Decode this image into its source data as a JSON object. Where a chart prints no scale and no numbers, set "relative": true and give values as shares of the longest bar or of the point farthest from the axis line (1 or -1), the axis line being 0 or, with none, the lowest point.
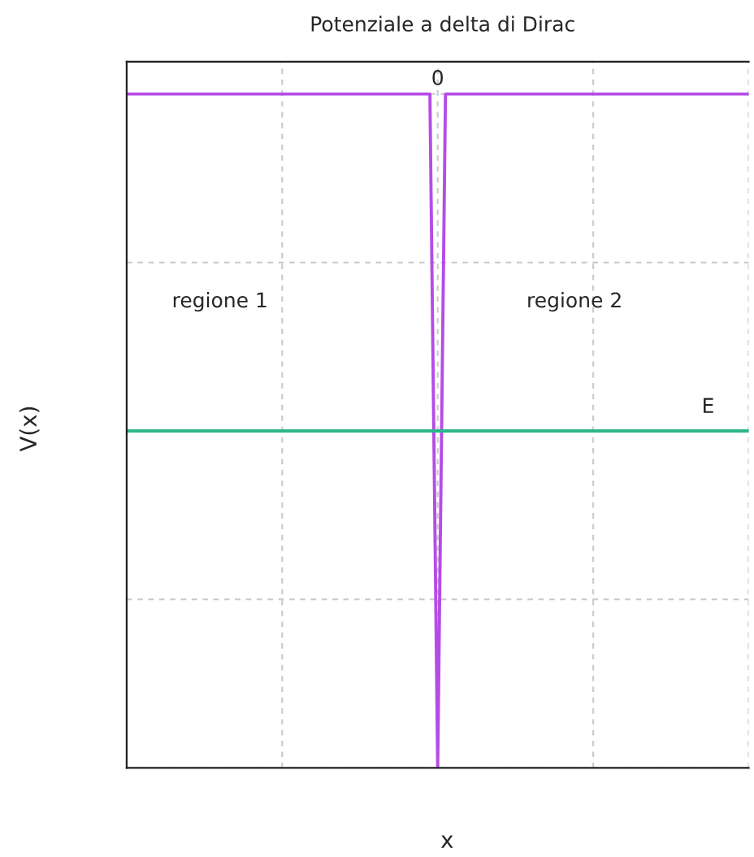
{
  "chart_data": {
    "type": "line",
    "title": "Potenziale a delta di Dirac",
    "xlabel": "x",
    "ylabel": "V(x)",
    "relative": true,
    "grid": true,
    "tick_labels": false,
    "legend": false,
    "marker": "none",
    "line_style": "solid",
    "categories": [
      null,
      null,
      null,
      null,
      null,
      null,
      null,
      null,
      null,
      null,
      null,
      null,
      null,
      null,
      null,
      null,
      null,
      null,
      null,
      null,
      null,
      null,
      null,
      null,
      null,
      null,
      null,
      null,
      null,
      null,
      null,
      null,
      null,
      null,
      null,
      null,
      null,
      null,
      null,
      null,
      null,
      null,
      null,
      null,
      null,
      null,
      null,
      null,
      null,
      null,
      null,
      null,
      null,
      null,
      null,
      null,
      null,
      null,
      null,
      null,
      null,
      null,
      null,
      null,
      null,
      null,
      null,
      null,
      null,
      null,
      null,
      null,
      null,
      null,
      null,
      null,
      null,
      null,
      null,
      null,
      null
    ],
    "series": [
      {
        "color": "#b64ce6",
        "values": [
          1,
          1,
          1,
          1,
          1,
          1,
          1,
          1,
          1,
          1,
          1,
          1,
          1,
          1,
          1,
          1,
          1,
          1,
          1,
          1,
          1,
          1,
          1,
          1,
          1,
          1,
          1,
          1,
          1,
          1,
          1,
          1,
          1,
          1,
          1,
          1,
          1,
          1,
          1,
          1,
          0,
          1,
          1,
          1,
          1,
          1,
          1,
          1,
          1,
          1,
          1,
          1,
          1,
          1,
          1,
          1,
          1,
          1,
          1,
          1,
          1,
          1,
          1,
          1,
          1,
          1,
          1,
          1,
          1,
          1,
          1,
          1,
          1,
          1,
          1,
          1,
          1,
          1,
          1,
          1,
          1
        ]
      },
      {
        "name": "E",
        "color": "#2ab58a",
        "values": [
          0.5,
          0.5,
          0.5,
          0.5,
          0.5,
          0.5,
          0.5,
          0.5,
          0.5,
          0.5,
          0.5,
          0.5,
          0.5,
          0.5,
          0.5,
          0.5,
          0.5,
          0.5,
          0.5,
          0.5,
          0.5,
          0.5,
          0.5,
          0.5,
          0.5,
          0.5,
          0.5,
          0.5,
          0.5,
          0.5,
          0.5,
          0.5,
          0.5,
          0.5,
          0.5,
          0.5,
          0.5,
          0.5,
          0.5,
          0.5,
          0.5,
          0.5,
          0.5,
          0.5,
          0.5,
          0.5,
          0.5,
          0.5,
          0.5,
          0.5,
          0.5,
          0.5,
          0.5,
          0.5,
          0.5,
          0.5,
          0.5,
          0.5,
          0.5,
          0.5,
          0.5,
          0.5,
          0.5,
          0.5,
          0.5,
          0.5,
          0.5,
          0.5,
          0.5,
          0.5,
          0.5,
          0.5,
          0.5,
          0.5,
          0.5,
          0.5,
          0.5,
          0.5,
          0.5,
          0.5,
          0.5
        ]
      }
    ],
    "annotations": [
      "regione 1",
      "regione 2",
      "0"
    ]
  }
}
